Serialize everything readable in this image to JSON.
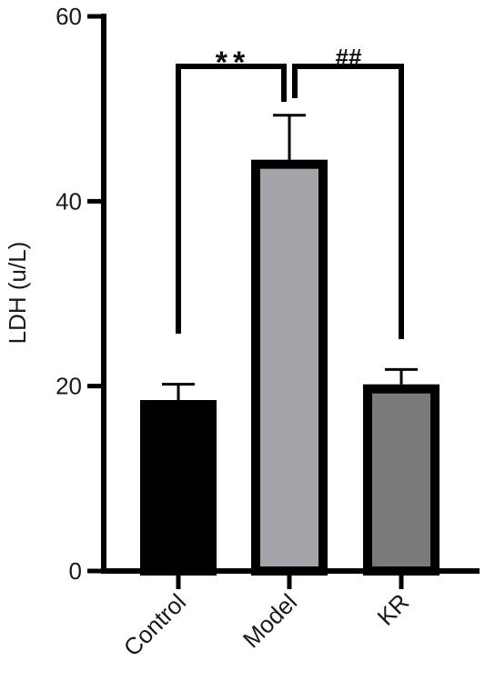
{
  "chart_data": {
    "type": "bar",
    "title": "",
    "xlabel": "",
    "ylabel": "LDH (u/L)",
    "ylim": [
      0,
      60
    ],
    "yticks": [
      0,
      20,
      40,
      60
    ],
    "categories": [
      "Control",
      "Model",
      "KR"
    ],
    "values": [
      18,
      44,
      19.7
    ],
    "errors": [
      2.2,
      5.3,
      2.1
    ],
    "bar_colors": [
      "#000000",
      "#a5a4ab",
      "#7a7a7a"
    ],
    "edge_color": "#000000",
    "grid": false,
    "legend": "none",
    "significance": [
      {
        "from": 0,
        "to": 1,
        "label": "**"
      },
      {
        "from": 1,
        "to": 2,
        "label": "##"
      }
    ]
  }
}
